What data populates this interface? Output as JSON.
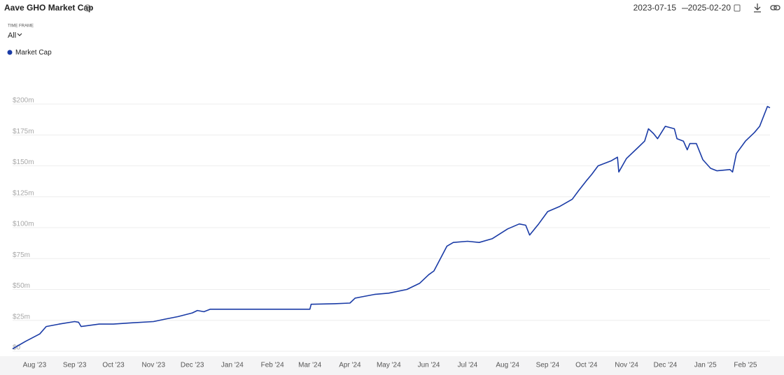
{
  "chart_data": {
    "type": "line",
    "title": "Aave GHO Market Cap",
    "x": [
      "2023-07-15",
      "2023-07-25",
      "2023-08-05",
      "2023-08-10",
      "2023-08-20",
      "2023-09-01",
      "2023-09-04",
      "2023-09-06",
      "2023-09-20",
      "2023-10-01",
      "2023-10-15",
      "2023-11-01",
      "2023-11-10",
      "2023-11-20",
      "2023-12-01",
      "2023-12-05",
      "2023-12-10",
      "2023-12-15",
      "2024-01-01",
      "2024-02-01",
      "2024-03-01",
      "2024-03-02",
      "2024-03-20",
      "2024-04-01",
      "2024-04-05",
      "2024-04-10",
      "2024-04-20",
      "2024-05-01",
      "2024-05-15",
      "2024-05-25",
      "2024-06-01",
      "2024-06-05",
      "2024-06-10",
      "2024-06-15",
      "2024-06-20",
      "2024-07-01",
      "2024-07-10",
      "2024-07-20",
      "2024-08-01",
      "2024-08-10",
      "2024-08-15",
      "2024-08-18",
      "2024-08-25",
      "2024-09-01",
      "2024-09-10",
      "2024-09-20",
      "2024-09-25",
      "2024-10-01",
      "2024-10-05",
      "2024-10-10",
      "2024-10-20",
      "2024-10-25",
      "2024-10-26",
      "2024-11-01",
      "2024-11-10",
      "2024-11-15",
      "2024-11-18",
      "2024-11-22",
      "2024-11-25",
      "2024-12-01",
      "2024-12-08",
      "2024-12-10",
      "2024-12-15",
      "2024-12-18",
      "2024-12-20",
      "2024-12-25",
      "2024-12-30",
      "2025-01-05",
      "2025-01-10",
      "2025-01-20",
      "2025-01-22",
      "2025-01-25",
      "2025-02-01",
      "2025-02-08",
      "2025-02-12",
      "2025-02-18",
      "2025-02-20"
    ],
    "series": [
      {
        "name": "Market Cap",
        "color": "#1a3ba6",
        "values": [
          2,
          8,
          14,
          20,
          22,
          24,
          23.5,
          20,
          22,
          22,
          23,
          24,
          26,
          28,
          31,
          33,
          32,
          34,
          34,
          34,
          34,
          38,
          38.5,
          39,
          43,
          44,
          46,
          47,
          50,
          55,
          62,
          65,
          75,
          85,
          88,
          89,
          88,
          91,
          99,
          103,
          102,
          94,
          103,
          113,
          117,
          123,
          130,
          138,
          143,
          150,
          154,
          157,
          145,
          156,
          165,
          170,
          180,
          176,
          172,
          182,
          180,
          172,
          170,
          163,
          168,
          168,
          155,
          148,
          146,
          147,
          145,
          160,
          170,
          177,
          182,
          198,
          197
        ]
      }
    ],
    "xlim": [
      "2023-07-15",
      "2025-02-20"
    ],
    "xticks": [
      {
        "value": "2023-08-01",
        "label": "Aug '23"
      },
      {
        "value": "2023-09-01",
        "label": "Sep '23"
      },
      {
        "value": "2023-10-01",
        "label": "Oct '23"
      },
      {
        "value": "2023-11-01",
        "label": "Nov '23"
      },
      {
        "value": "2023-12-01",
        "label": "Dec '23"
      },
      {
        "value": "2024-01-01",
        "label": "Jan '24"
      },
      {
        "value": "2024-02-01",
        "label": "Feb '24"
      },
      {
        "value": "2024-03-01",
        "label": "Mar '24"
      },
      {
        "value": "2024-04-01",
        "label": "Apr '24"
      },
      {
        "value": "2024-05-01",
        "label": "May '24"
      },
      {
        "value": "2024-06-01",
        "label": "Jun '24"
      },
      {
        "value": "2024-07-01",
        "label": "Jul '24"
      },
      {
        "value": "2024-08-01",
        "label": "Aug '24"
      },
      {
        "value": "2024-09-01",
        "label": "Sep '24"
      },
      {
        "value": "2024-10-01",
        "label": "Oct '24"
      },
      {
        "value": "2024-11-01",
        "label": "Nov '24"
      },
      {
        "value": "2024-12-01",
        "label": "Dec '24"
      },
      {
        "value": "2025-01-01",
        "label": "Jan '25"
      },
      {
        "value": "2025-02-01",
        "label": "Feb '25"
      }
    ],
    "ylim": [
      0,
      225
    ],
    "yticks": [
      {
        "value": 0,
        "label": "$0"
      },
      {
        "value": 25,
        "label": "$25m"
      },
      {
        "value": 50,
        "label": "$50m"
      },
      {
        "value": 75,
        "label": "$75m"
      },
      {
        "value": 100,
        "label": "$100m"
      },
      {
        "value": 125,
        "label": "$125m"
      },
      {
        "value": 150,
        "label": "$150m"
      },
      {
        "value": 175,
        "label": "$175m"
      },
      {
        "value": 200,
        "label": "$200m"
      }
    ],
    "grid": true
  },
  "controls": {
    "time_frame_label": "TIME FRAME",
    "time_frame": "All",
    "date_from": "2023-07-15",
    "date_to": "2025-02-20"
  }
}
